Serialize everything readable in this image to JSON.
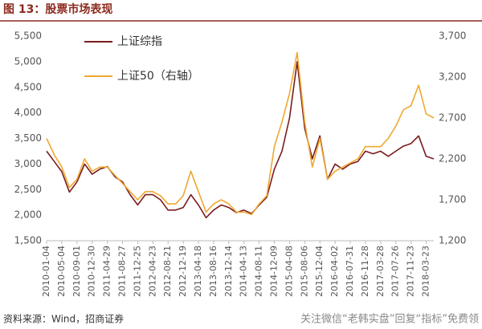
{
  "chart_data": {
    "type": "line",
    "title": "图 13：股票市场表现",
    "source": "资料来源：Wind，招商证券",
    "watermark": "关注微信“老韩实盘”回复“指标”免费领",
    "categories": [
      "2010-01-04",
      null,
      "2010-05-04",
      null,
      "2010-09-01",
      null,
      "2010-12-30",
      null,
      "2011-04-29",
      null,
      "2011-08-27",
      null,
      "2011-12-25",
      null,
      "2012-04-23",
      null,
      "2012-08-21",
      null,
      "2012-12-19",
      null,
      "2013-04-18",
      null,
      "2013-08-16",
      null,
      "2013-12-14",
      null,
      "2014-04-13",
      null,
      "2014-08-11",
      null,
      "2014-12-09",
      null,
      "2015-04-08",
      null,
      "2015-08-06",
      null,
      "2015-12-04",
      null,
      "2016-04-02",
      null,
      "2016-07-31",
      null,
      "2016-11-28",
      null,
      "2017-03-28",
      null,
      "2017-07-26",
      null,
      "2017-11-23",
      null,
      "2018-03-23",
      null
    ],
    "series": [
      {
        "name": "上证综指",
        "color": "#7a1c1c",
        "values": [
          3250,
          3050,
          2850,
          2450,
          2650,
          3000,
          2800,
          2900,
          2950,
          2750,
          2650,
          2400,
          2200,
          2400,
          2400,
          2300,
          2100,
          2100,
          2150,
          2400,
          2200,
          1950,
          2100,
          2200,
          2150,
          2050,
          2100,
          2030,
          2200,
          2350,
          2900,
          3250,
          3900,
          5000,
          3700,
          3100,
          3550,
          2700,
          3000,
          2900,
          3000,
          3050,
          3250,
          3200,
          3250,
          3150,
          3250,
          3350,
          3400,
          3550,
          3150,
          3100
        ]
      },
      {
        "name": "上证50（右轴）",
        "color": "#f0a830",
        "axis": "y2",
        "values": [
          2450,
          2250,
          2100,
          1850,
          1950,
          2200,
          2050,
          2100,
          2100,
          2000,
          1900,
          1800,
          1700,
          1800,
          1800,
          1750,
          1650,
          1650,
          1750,
          2050,
          1800,
          1550,
          1650,
          1700,
          1650,
          1550,
          1550,
          1520,
          1650,
          1750,
          2350,
          2650,
          3000,
          3500,
          2650,
          2100,
          2450,
          1950,
          2050,
          2100,
          2150,
          2200,
          2350,
          2350,
          2350,
          2450,
          2600,
          2800,
          2850,
          3100,
          2750,
          2700
        ]
      }
    ],
    "ylim": [
      1500,
      5500
    ],
    "yticks": [
      {
        "value": 1500,
        "label": "1,500"
      },
      {
        "value": 2000,
        "label": "2,000"
      },
      {
        "value": 2500,
        "label": "2,500"
      },
      {
        "value": 3000,
        "label": "3,000"
      },
      {
        "value": 3500,
        "label": "3,500"
      },
      {
        "value": 4000,
        "label": "4,000"
      },
      {
        "value": 4500,
        "label": "4,500"
      },
      {
        "value": 5000,
        "label": "5,000"
      },
      {
        "value": 5500,
        "label": "5,500"
      }
    ],
    "y2lim": [
      1200,
      3700
    ],
    "y2ticks": [
      {
        "value": 1200,
        "label": "1,200"
      },
      {
        "value": 1700,
        "label": "1,700"
      },
      {
        "value": 2200,
        "label": "2,200"
      },
      {
        "value": 2700,
        "label": "2,700"
      },
      {
        "value": 3200,
        "label": "3,200"
      },
      {
        "value": 3700,
        "label": "3,700"
      }
    ],
    "grid": false
  }
}
